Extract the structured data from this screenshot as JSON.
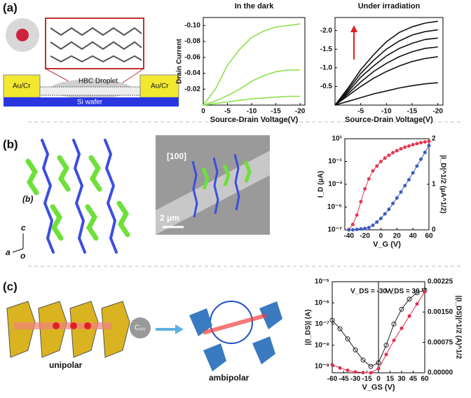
{
  "figure": {
    "panel_labels": [
      "(a)",
      "(b)",
      "(c)"
    ],
    "a_labels": [
      "Au/Cr",
      "HBC Droplet",
      "Au/Cr",
      "Si wafer"
    ],
    "b_labels": [
      "(b)",
      "c",
      "a",
      "o",
      "[100]",
      "2 μm"
    ],
    "c_labels": [
      "C₆₀",
      "unipolar",
      "ambipolar"
    ]
  },
  "chart_data": [
    {
      "type": "line",
      "title": "In the dark",
      "xlabel": "Source-Drain Voltage(V)",
      "ylabel": "Drain Current",
      "xlim": [
        0,
        -21
      ],
      "xticks": [
        {
          "value": 0,
          "label": "0"
        },
        -5,
        -10,
        -15,
        -20
      ],
      "ylim": [
        0,
        -0.11
      ],
      "yticks": [
        -0.02,
        -0.04,
        -0.06,
        -0.08,
        {
          "value": -0.1,
          "label": "-0.10"
        }
      ],
      "x": [
        0,
        -2.5,
        -5,
        -7.5,
        -10,
        -12.5,
        -15,
        -17.5,
        -20
      ],
      "series": [
        {
          "color": "#8ee04a",
          "values": [
            0,
            -0.02,
            -0.05,
            -0.07,
            -0.085,
            -0.093,
            -0.098,
            -0.1,
            -0.102
          ]
        },
        {
          "color": "#8ee04a",
          "values": [
            0,
            -0.005,
            -0.012,
            -0.02,
            -0.03,
            -0.037,
            -0.042,
            -0.044,
            -0.044
          ]
        },
        {
          "color": "#8ee04a",
          "values": [
            0,
            -0.002,
            -0.004,
            -0.006,
            -0.008,
            -0.009,
            -0.01,
            -0.011,
            -0.011
          ]
        }
      ]
    },
    {
      "type": "line",
      "title": "Under irradiation",
      "xlabel": "Source-Drain Voltage(V)",
      "xlim": [
        0,
        -21
      ],
      "xticks": [
        -5,
        -10,
        -15,
        -20
      ],
      "ylim": [
        0,
        -2.35
      ],
      "yticks": [
        -0.5,
        {
          "value": -1,
          "label": "-1.0"
        },
        -1.5,
        {
          "value": -2,
          "label": "-2.0"
        }
      ],
      "x": [
        0,
        -2.5,
        -5,
        -7.5,
        -10,
        -12.5,
        -15,
        -17.5,
        -20
      ],
      "series": [
        {
          "color": "#111111",
          "values": [
            0,
            -0.45,
            -0.95,
            -1.35,
            -1.7,
            -1.95,
            -2.1,
            -2.2,
            -2.25
          ]
        },
        {
          "color": "#111111",
          "values": [
            0,
            -0.4,
            -0.85,
            -1.2,
            -1.5,
            -1.72,
            -1.88,
            -1.97,
            -2.02
          ]
        },
        {
          "color": "#111111",
          "values": [
            0,
            -0.35,
            -0.75,
            -1.05,
            -1.32,
            -1.52,
            -1.66,
            -1.76,
            -1.8
          ]
        },
        {
          "color": "#111111",
          "values": [
            0,
            -0.3,
            -0.62,
            -0.9,
            -1.12,
            -1.3,
            -1.43,
            -1.52,
            -1.56
          ]
        },
        {
          "color": "#111111",
          "values": [
            0,
            -0.25,
            -0.5,
            -0.72,
            -0.9,
            -1.05,
            -1.17,
            -1.25,
            -1.3
          ]
        },
        {
          "color": "#111111",
          "values": [
            0,
            -0.1,
            -0.2,
            -0.3,
            -0.38,
            -0.46,
            -0.52,
            -0.57,
            -0.6
          ]
        }
      ]
    },
    {
      "type": "line",
      "xlabel": "V_G (V)",
      "ylabel": "I_D (μA)",
      "y2label": "|I_D|^1/2 (μA^1/2)",
      "xlim": [
        -45,
        60
      ],
      "xticks": [
        -40,
        -20,
        0,
        20,
        40,
        60
      ],
      "ylog": true,
      "ylim": [
        1e-07,
        10
      ],
      "yticks": [
        {
          "value": 1e-07,
          "label": "10⁻⁷"
        },
        {
          "value": 1e-05,
          "label": "10⁻⁵"
        },
        {
          "value": 0.001,
          "label": "10⁻³"
        },
        {
          "value": 0.1,
          "label": "10⁻¹"
        },
        {
          "value": 10,
          "label": "10¹"
        }
      ],
      "y2lim": [
        0,
        2
      ],
      "y2ticks": [
        0,
        1,
        2
      ],
      "x": [
        -40,
        -35,
        -30,
        -25,
        -20,
        -15,
        -10,
        -5,
        0,
        5,
        10,
        15,
        20,
        25,
        30,
        35,
        40,
        45,
        50,
        55,
        60
      ],
      "series": [
        {
          "color": "#e8384f",
          "markers": true,
          "values": [
            1e-07,
            3e-07,
            2e-06,
            3e-05,
            0.0004,
            0.003,
            0.015,
            0.04,
            0.1,
            0.2,
            0.35,
            0.6,
            0.9,
            1.3,
            1.8,
            2.3,
            3,
            3.7,
            4.5,
            5.3,
            6
          ]
        },
        {
          "color": "#3b5bc4",
          "markers": true,
          "axis": "y2",
          "values": [
            0,
            0,
            0.01,
            0.02,
            0.03,
            0.05,
            0.1,
            0.17,
            0.25,
            0.35,
            0.45,
            0.58,
            0.7,
            0.83,
            0.97,
            1.1,
            1.25,
            1.4,
            1.55,
            1.7,
            1.85
          ]
        }
      ]
    },
    {
      "type": "line",
      "xlabel": "V_GS (V)",
      "ylabel": "|(I_DS)| (A)",
      "y2label": "|(I_DS)|^1/2 (A)^1/2",
      "annotations": [
        "V_DS = -30 V",
        "V_DS = 30 V"
      ],
      "xlim": [
        -60,
        60
      ],
      "xticks": [
        -60,
        -45,
        -30,
        -15,
        0,
        15,
        30,
        45,
        60
      ],
      "ylog": true,
      "ylim": [
        5e-10,
        1e-05
      ],
      "yticks": [
        {
          "value": 1e-09,
          "label": "10⁻⁹"
        },
        {
          "value": 1e-08,
          "label": "10⁻⁸"
        },
        {
          "value": 1e-07,
          "label": "10⁻⁷"
        },
        {
          "value": 1e-06,
          "label": "10⁻⁶"
        },
        {
          "value": 1e-05,
          "label": "10⁻⁵"
        }
      ],
      "y2lim": [
        0,
        0.00225
      ],
      "y2ticks": [
        {
          "value": 0,
          "label": "0.00000"
        },
        0.00075,
        {
          "value": 0.0015,
          "label": "0.00150"
        },
        0.00225
      ],
      "x": [
        -60,
        -50,
        -40,
        -30,
        -20,
        -10,
        0,
        10,
        20,
        30,
        40,
        50,
        60
      ],
      "series": [
        {
          "color": "#222222",
          "markers": true,
          "open": true,
          "values": [
            1.5e-07,
            6e-08,
            2e-08,
            6e-09,
            2e-09,
            1e-09,
            1.5e-09,
            1e-08,
            1e-07,
            5e-07,
            1.5e-06,
            3e-06,
            4e-06
          ]
        },
        {
          "color": "#e03050",
          "markers": true,
          "axis": "y2",
          "values": [
            0.0002,
            0.00012,
            6e-05,
            2e-05,
            5e-06,
            0,
            0.0001,
            0.00045,
            0.0008,
            0.0011,
            0.0014,
            0.0017,
            0.002
          ]
        }
      ]
    }
  ]
}
